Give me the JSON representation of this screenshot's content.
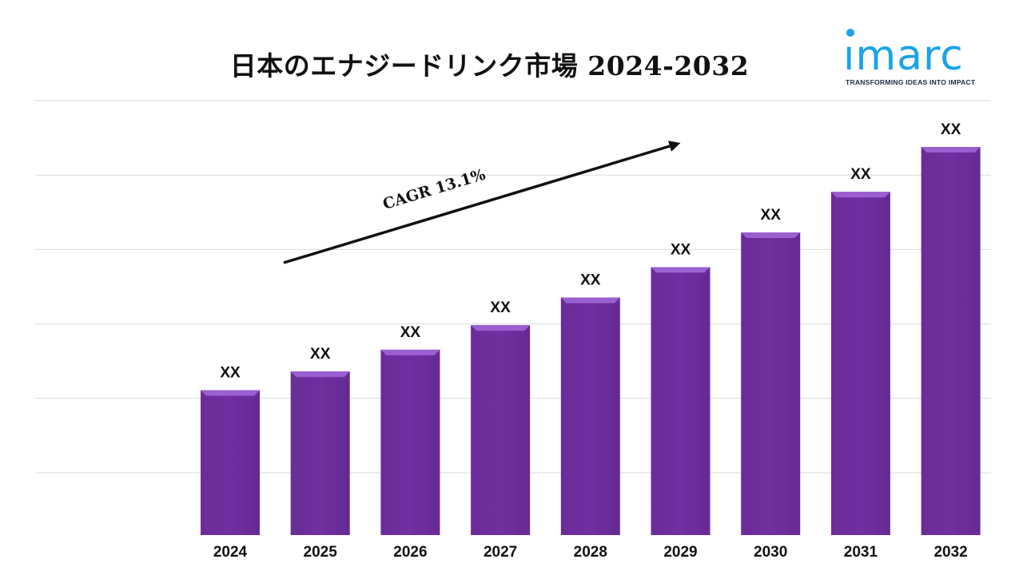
{
  "title": "日本のエナジードリンク市場 2024-2032",
  "logo": {
    "word": "ımarc",
    "tagline": "TRANSFORMING IDEAS INTO IMPACT"
  },
  "colors": {
    "bar": "#7030a0",
    "bar_top": "#9a5fd0",
    "gridline": "#d9d9d9",
    "logo": "#1aa3e8",
    "arrow": "#111111"
  },
  "cagr_label": "CAGR 13.1%",
  "chart_data": {
    "type": "bar",
    "categories": [
      "2024",
      "2025",
      "2026",
      "2027",
      "2028",
      "2029",
      "2030",
      "2031",
      "2032"
    ],
    "values": [
      1.0,
      1.13,
      1.28,
      1.45,
      1.64,
      1.85,
      2.09,
      2.37,
      2.68
    ],
    "data_labels": [
      "XX",
      "XX",
      "XX",
      "XX",
      "XX",
      "XX",
      "XX",
      "XX",
      "XX"
    ],
    "xlabel": "",
    "ylabel": "",
    "ylim": [
      0,
      3.0
    ],
    "grid": true,
    "legend": "none"
  }
}
